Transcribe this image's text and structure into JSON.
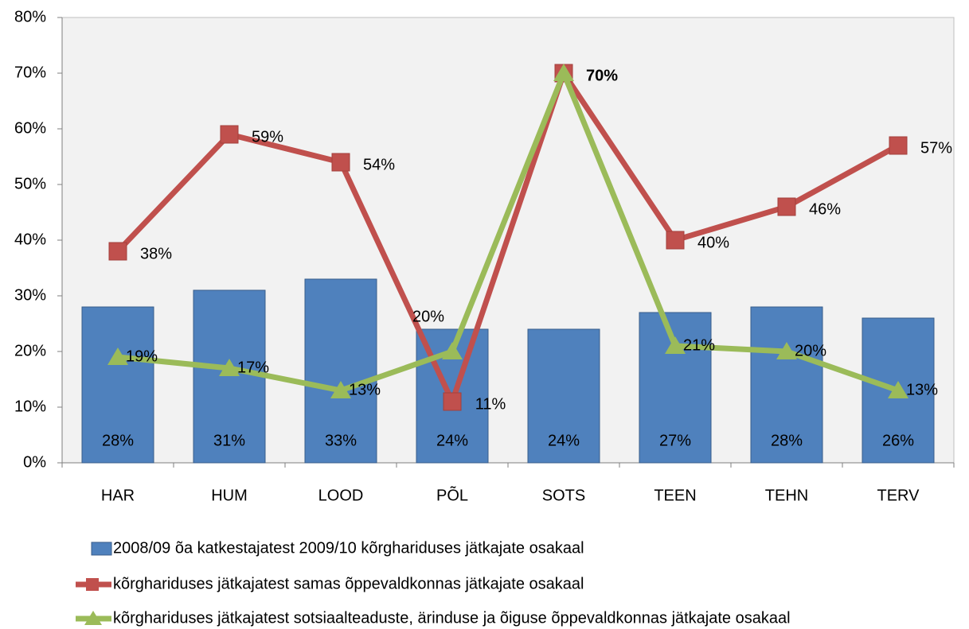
{
  "chart_data": {
    "type": "bar-line",
    "categories": [
      "HAR",
      "HUM",
      "LOOD",
      "PÕL",
      "SOTS",
      "TEEN",
      "TEHN",
      "TERV"
    ],
    "series": [
      {
        "name": "2008/09 õa katkestajatest 2009/10 kõrghariduses jätkajate osakaal",
        "kind": "bar",
        "color": "#4f81bd",
        "values": [
          28,
          31,
          33,
          24,
          24,
          27,
          28,
          26
        ],
        "value_labels": [
          "28%",
          "31%",
          "33%",
          "24%",
          "24%",
          "27%",
          "28%",
          "26%"
        ]
      },
      {
        "name": "kõrghariduses jätkajatest samas õppevaldkonnas jätkajate osakaal",
        "kind": "line",
        "marker": "square",
        "color": "#c0504d",
        "values": [
          38,
          59,
          54,
          11,
          70,
          40,
          46,
          57
        ],
        "value_labels": [
          "38%",
          "59%",
          "54%",
          "11%",
          "70%",
          "40%",
          "46%",
          "57%"
        ]
      },
      {
        "name": "kõrghariduses jätkajatest sotsiaalteaduste, ärinduse ja õiguse õppevaldkonnas jätkajate osakaal",
        "kind": "line",
        "marker": "triangle",
        "color": "#9bbb59",
        "values": [
          19,
          17,
          13,
          20,
          70,
          21,
          20,
          13
        ],
        "value_labels": [
          "19%",
          "17%",
          "13%",
          "20%",
          null,
          "21%",
          "20%",
          "13%"
        ]
      }
    ],
    "ylim": [
      0,
      80
    ],
    "yticks": [
      {
        "value": 0,
        "label": "0%"
      },
      {
        "value": 10,
        "label": "10%"
      },
      {
        "value": 20,
        "label": "20%"
      },
      {
        "value": 30,
        "label": "30%"
      },
      {
        "value": 40,
        "label": "40%"
      },
      {
        "value": 50,
        "label": "50%"
      },
      {
        "value": 60,
        "label": "60%"
      },
      {
        "value": 70,
        "label": "70%"
      },
      {
        "value": 80,
        "label": "80%"
      }
    ]
  }
}
